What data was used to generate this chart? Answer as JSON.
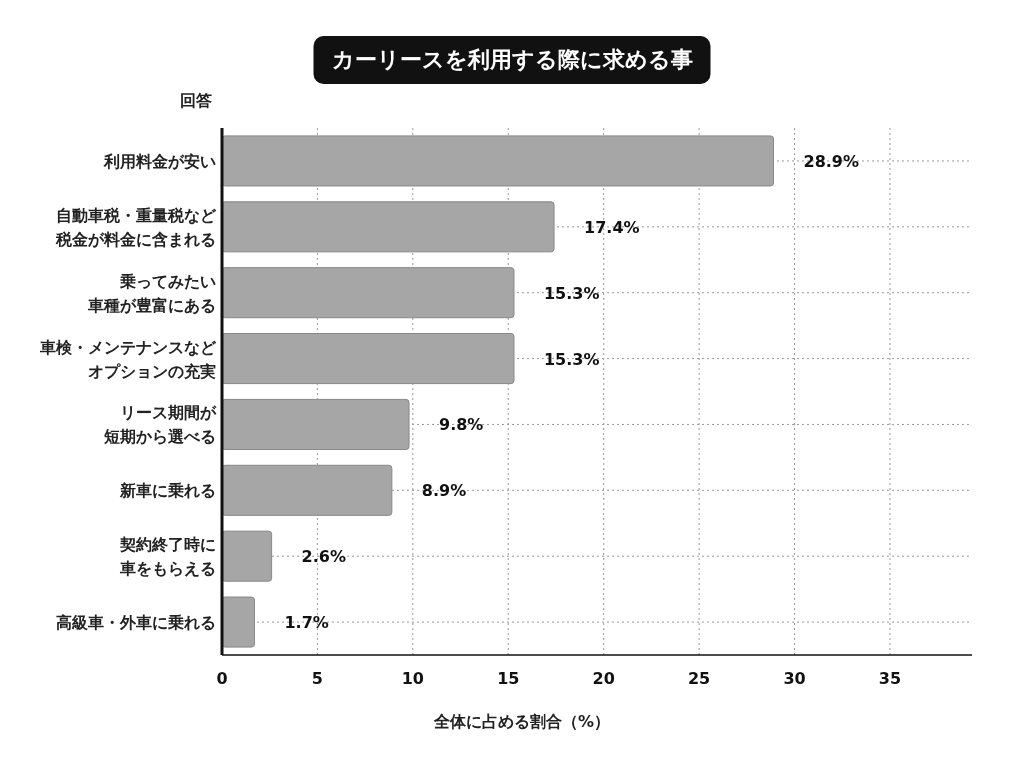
{
  "chart_data": {
    "type": "bar",
    "orientation": "horizontal",
    "title": "カーリースを利用する際に求める事",
    "ylabel": "回答",
    "xlabel": "全体に占める割合（%）",
    "categories": [
      "利用料金が安い",
      "自動車税・重量税など税金が料金に含まれる",
      "乗ってみたい車種が豊富にある",
      "車検・メンテナンスなどオプションの充実",
      "リース期間が短期から選べる",
      "新車に乗れる",
      "契約終了時に車をもらえる",
      "高級車・外車に乗れる"
    ],
    "values": [
      28.9,
      17.4,
      15.3,
      15.3,
      9.8,
      8.9,
      2.6,
      1.7
    ],
    "color": "#a6a6a6",
    "value_labels": [
      "28.9%",
      "17.4%",
      "15.3%",
      "15.3%",
      "9.8%",
      "8.9%",
      "2.6%",
      "1.7%"
    ],
    "xlim": [
      0,
      39.3
    ],
    "xticks": [
      0,
      5,
      10,
      15,
      20,
      25,
      30,
      35
    ],
    "grid": true
  }
}
